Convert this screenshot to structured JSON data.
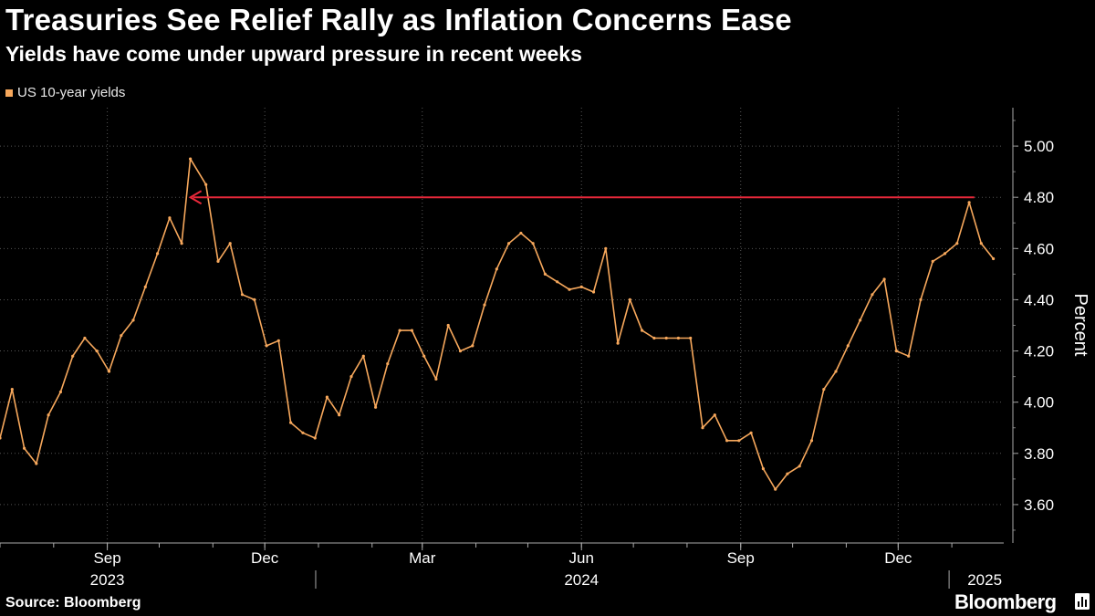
{
  "header": {
    "title": "Treasuries See Relief Rally as Inflation Concerns Ease",
    "subtitle": "Yields have come under upward pressure in recent weeks"
  },
  "footer": {
    "source": "Source: Bloomberg",
    "brand": "Bloomberg"
  },
  "colors": {
    "series": "#f7a85c",
    "arrow": "#e8283a",
    "grid": "#555555",
    "background": "#000000"
  },
  "chart_data": {
    "type": "line",
    "title": "Treasuries See Relief Rally as Inflation Concerns Ease",
    "subtitle": "Yields have come under upward pressure in recent weeks",
    "ylabel": "Percent",
    "ylim": [
      3.45,
      5.15
    ],
    "y_ticks": [
      "3.60",
      "3.80",
      "4.00",
      "4.20",
      "4.40",
      "4.60",
      "4.80",
      "5.00"
    ],
    "x_range": [
      "2023-07-01",
      "2025-01-31"
    ],
    "x_month_ticks": [
      {
        "date": "2023-09-01",
        "label": "Sep"
      },
      {
        "date": "2023-12-01",
        "label": "Dec"
      },
      {
        "date": "2024-03-01",
        "label": "Mar"
      },
      {
        "date": "2024-06-01",
        "label": "Jun"
      },
      {
        "date": "2024-09-01",
        "label": "Sep"
      },
      {
        "date": "2024-12-01",
        "label": "Dec"
      }
    ],
    "x_year_labels": [
      {
        "date": "2023-09-01",
        "label": "2023"
      },
      {
        "date": "2024-06-01",
        "label": "2024"
      },
      {
        "date": "2025-01-20",
        "label": "2025"
      }
    ],
    "legend": {
      "position": "top-left",
      "entries": [
        "US 10-year yields"
      ]
    },
    "grid": true,
    "series": [
      {
        "name": "US 10-year yields",
        "x": [
          "2023-07-01",
          "2023-07-08",
          "2023-07-15",
          "2023-07-22",
          "2023-07-29",
          "2023-08-05",
          "2023-08-12",
          "2023-08-19",
          "2023-08-26",
          "2023-09-02",
          "2023-09-09",
          "2023-09-16",
          "2023-09-23",
          "2023-09-30",
          "2023-10-07",
          "2023-10-14",
          "2023-10-19",
          "2023-10-28",
          "2023-11-04",
          "2023-11-11",
          "2023-11-18",
          "2023-11-25",
          "2023-12-02",
          "2023-12-09",
          "2023-12-16",
          "2023-12-23",
          "2023-12-30",
          "2024-01-06",
          "2024-01-13",
          "2024-01-20",
          "2024-01-27",
          "2024-02-03",
          "2024-02-10",
          "2024-02-17",
          "2024-02-24",
          "2024-03-02",
          "2024-03-09",
          "2024-03-16",
          "2024-03-23",
          "2024-03-30",
          "2024-04-06",
          "2024-04-13",
          "2024-04-20",
          "2024-04-27",
          "2024-05-04",
          "2024-05-11",
          "2024-05-18",
          "2024-05-25",
          "2024-06-01",
          "2024-06-08",
          "2024-06-15",
          "2024-06-22",
          "2024-06-29",
          "2024-07-06",
          "2024-07-13",
          "2024-07-20",
          "2024-07-27",
          "2024-08-03",
          "2024-08-10",
          "2024-08-17",
          "2024-08-24",
          "2024-08-31",
          "2024-09-07",
          "2024-09-14",
          "2024-09-21",
          "2024-09-28",
          "2024-10-05",
          "2024-10-12",
          "2024-10-19",
          "2024-10-26",
          "2024-11-02",
          "2024-11-09",
          "2024-11-16",
          "2024-11-23",
          "2024-11-30",
          "2024-12-07",
          "2024-12-14",
          "2024-12-21",
          "2024-12-28",
          "2025-01-04",
          "2025-01-11",
          "2025-01-18",
          "2025-01-25"
        ],
        "values": [
          3.86,
          4.05,
          3.82,
          3.76,
          3.95,
          4.04,
          4.18,
          4.25,
          4.2,
          4.12,
          4.26,
          4.32,
          4.45,
          4.58,
          4.72,
          4.62,
          4.95,
          4.85,
          4.55,
          4.62,
          4.42,
          4.4,
          4.22,
          4.24,
          3.92,
          3.88,
          3.86,
          4.02,
          3.95,
          4.1,
          4.18,
          3.98,
          4.15,
          4.28,
          4.28,
          4.18,
          4.09,
          4.3,
          4.2,
          4.22,
          4.38,
          4.52,
          4.62,
          4.66,
          4.62,
          4.5,
          4.47,
          4.44,
          4.45,
          4.43,
          4.6,
          4.23,
          4.4,
          4.28,
          4.25,
          4.25,
          4.25,
          4.25,
          3.9,
          3.95,
          3.85,
          3.85,
          3.88,
          3.74,
          3.66,
          3.72,
          3.75,
          3.85,
          4.05,
          4.12,
          4.22,
          4.32,
          4.42,
          4.48,
          4.2,
          4.18,
          4.4,
          4.55,
          4.58,
          4.62,
          4.78,
          4.62,
          4.56
        ]
      }
    ],
    "annotations": [
      {
        "type": "arrow",
        "from": "2025-01-14",
        "to": "2023-10-19",
        "y": 4.8
      }
    ]
  }
}
